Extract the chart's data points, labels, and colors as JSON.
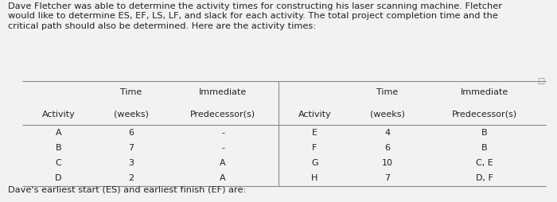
{
  "intro_text": "Dave Fletcher was able to determine the activity times for constructing his laser scanning machine. Fletcher\nwould like to determine ES, EF, LS, LF, and slack for each activity. The total project completion time and the\ncritical path should also be determined. Here are the activity times:",
  "left_rows": [
    [
      "A",
      "6",
      "-"
    ],
    [
      "B",
      "7",
      "-"
    ],
    [
      "C",
      "3",
      "A"
    ],
    [
      "D",
      "2",
      "A"
    ]
  ],
  "right_rows": [
    [
      "E",
      "4",
      "B"
    ],
    [
      "F",
      "6",
      "B"
    ],
    [
      "G",
      "10",
      "C, E"
    ],
    [
      "H",
      "7",
      "D, F"
    ]
  ],
  "footer_text": "Dave's earliest start (ES) and earliest finish (EF) are:",
  "bg_color": "#f2f2f2",
  "line_color": "#888888",
  "text_color": "#222222",
  "font_size": 8.0,
  "header_font_size": 8.0,
  "intro_font_size": 8.2,
  "footer_font_size": 8.2
}
